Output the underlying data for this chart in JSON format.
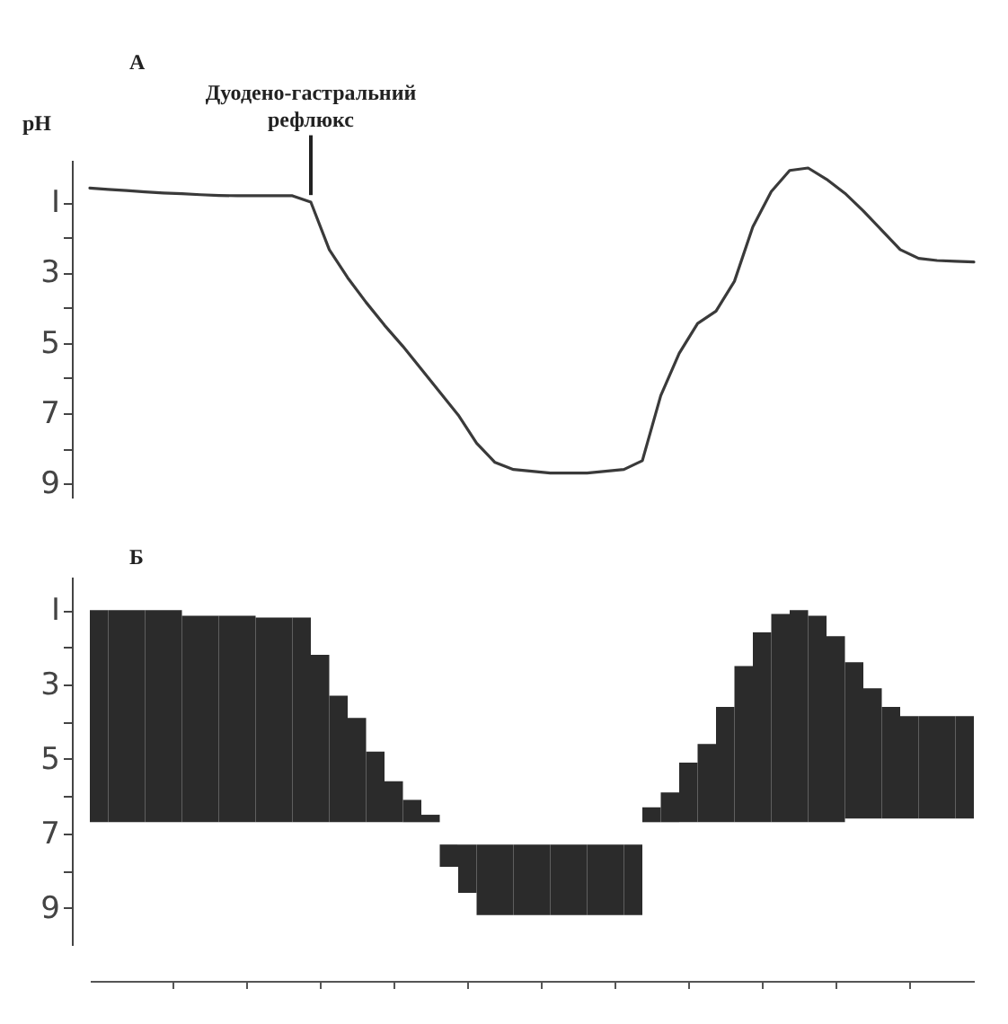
{
  "chart_data": [
    {
      "type": "line",
      "title": "А",
      "ylabel": "pH",
      "ylim": [
        9.4,
        -0.2
      ],
      "yticks": [
        {
          "value": 1,
          "label": "I"
        },
        {
          "value": 2,
          "label": null
        },
        3,
        {
          "value": 4,
          "label": null
        },
        5,
        {
          "value": 6,
          "label": null
        },
        7,
        {
          "value": 8,
          "label": null
        },
        9
      ],
      "tick_labels": "y",
      "color": "#3a3a3a",
      "categories": [
        null,
        null,
        null,
        null,
        null,
        null,
        null,
        null,
        null,
        null,
        null,
        null,
        null,
        null,
        null,
        null,
        null,
        null,
        null,
        null,
        null,
        null,
        null,
        null,
        null,
        null,
        null,
        null,
        null,
        null,
        null,
        null,
        null,
        null,
        null,
        null,
        null,
        null,
        null,
        null,
        null,
        null,
        null,
        null,
        null,
        null,
        null,
        null,
        null
      ],
      "values": [
        0.6,
        0.64,
        0.67,
        0.71,
        0.74,
        0.76,
        0.79,
        0.81,
        0.82,
        0.82,
        0.82,
        0.82,
        1.0,
        2.35,
        3.15,
        3.85,
        4.5,
        5.1,
        5.75,
        6.4,
        7.05,
        7.85,
        8.4,
        8.6,
        8.65,
        8.7,
        8.7,
        8.7,
        8.65,
        8.6,
        8.35,
        6.5,
        5.3,
        4.45,
        4.1,
        3.25,
        1.7,
        0.7,
        0.1,
        0.03,
        0.35,
        0.75,
        1.25,
        1.8,
        2.35,
        2.6,
        2.66,
        2.68,
        2.7
      ],
      "annotations": [
        {
          "text": "Дуодено-гастральний рефлюкс",
          "y": 1.0
        }
      ]
    },
    {
      "type": "bar",
      "title": "Б",
      "ylim": [
        10,
        0.1
      ],
      "yticks": [
        {
          "value": 1,
          "label": "I"
        },
        {
          "value": 2,
          "label": null
        },
        3,
        {
          "value": 4,
          "label": null
        },
        5,
        {
          "value": 6,
          "label": null
        },
        7,
        {
          "value": 8,
          "label": null
        },
        9
      ],
      "tick_labels": "y",
      "color": "#2b2b2b",
      "categories": [
        null,
        null,
        null,
        null,
        null,
        null,
        null,
        null,
        null,
        null,
        null,
        null,
        null,
        null,
        null,
        null,
        null,
        null,
        null,
        null,
        null,
        null,
        null,
        null,
        null,
        null,
        null,
        null,
        null,
        null,
        null,
        null,
        null,
        null,
        null,
        null,
        null,
        null,
        null,
        null,
        null,
        null,
        null,
        null,
        null,
        null,
        null,
        null
      ],
      "base": [
        6.7,
        6.7,
        6.7,
        6.7,
        6.7,
        6.7,
        6.7,
        6.7,
        6.7,
        6.7,
        6.7,
        6.7,
        6.7,
        6.7,
        6.7,
        6.7,
        6.7,
        6.7,
        6.7,
        7.3,
        7.3,
        7.3,
        7.3,
        7.3,
        7.3,
        7.3,
        7.3,
        7.3,
        7.3,
        7.3,
        6.7,
        6.7,
        6.7,
        6.7,
        6.7,
        6.7,
        6.7,
        6.7,
        6.7,
        6.7,
        6.7,
        6.6,
        6.6,
        6.6,
        6.6,
        6.6,
        6.6,
        6.6
      ],
      "values": [
        -5.7,
        -5.7,
        -5.7,
        -5.7,
        -5.7,
        -5.55,
        -5.55,
        -5.55,
        -5.55,
        -5.5,
        -5.5,
        -5.5,
        -4.5,
        -3.4,
        -2.8,
        -1.9,
        -1.1,
        -0.6,
        -0.2,
        0.6,
        1.3,
        1.9,
        1.9,
        1.9,
        1.9,
        1.9,
        1.9,
        1.9,
        1.9,
        1.9,
        -0.4,
        -0.8,
        -1.6,
        -2.1,
        -3.1,
        -4.2,
        -5.1,
        -5.6,
        -5.7,
        -5.55,
        -5.0,
        -4.2,
        -3.5,
        -3.0,
        -2.75,
        -2.75,
        -2.75,
        -2.75
      ]
    }
  ]
}
